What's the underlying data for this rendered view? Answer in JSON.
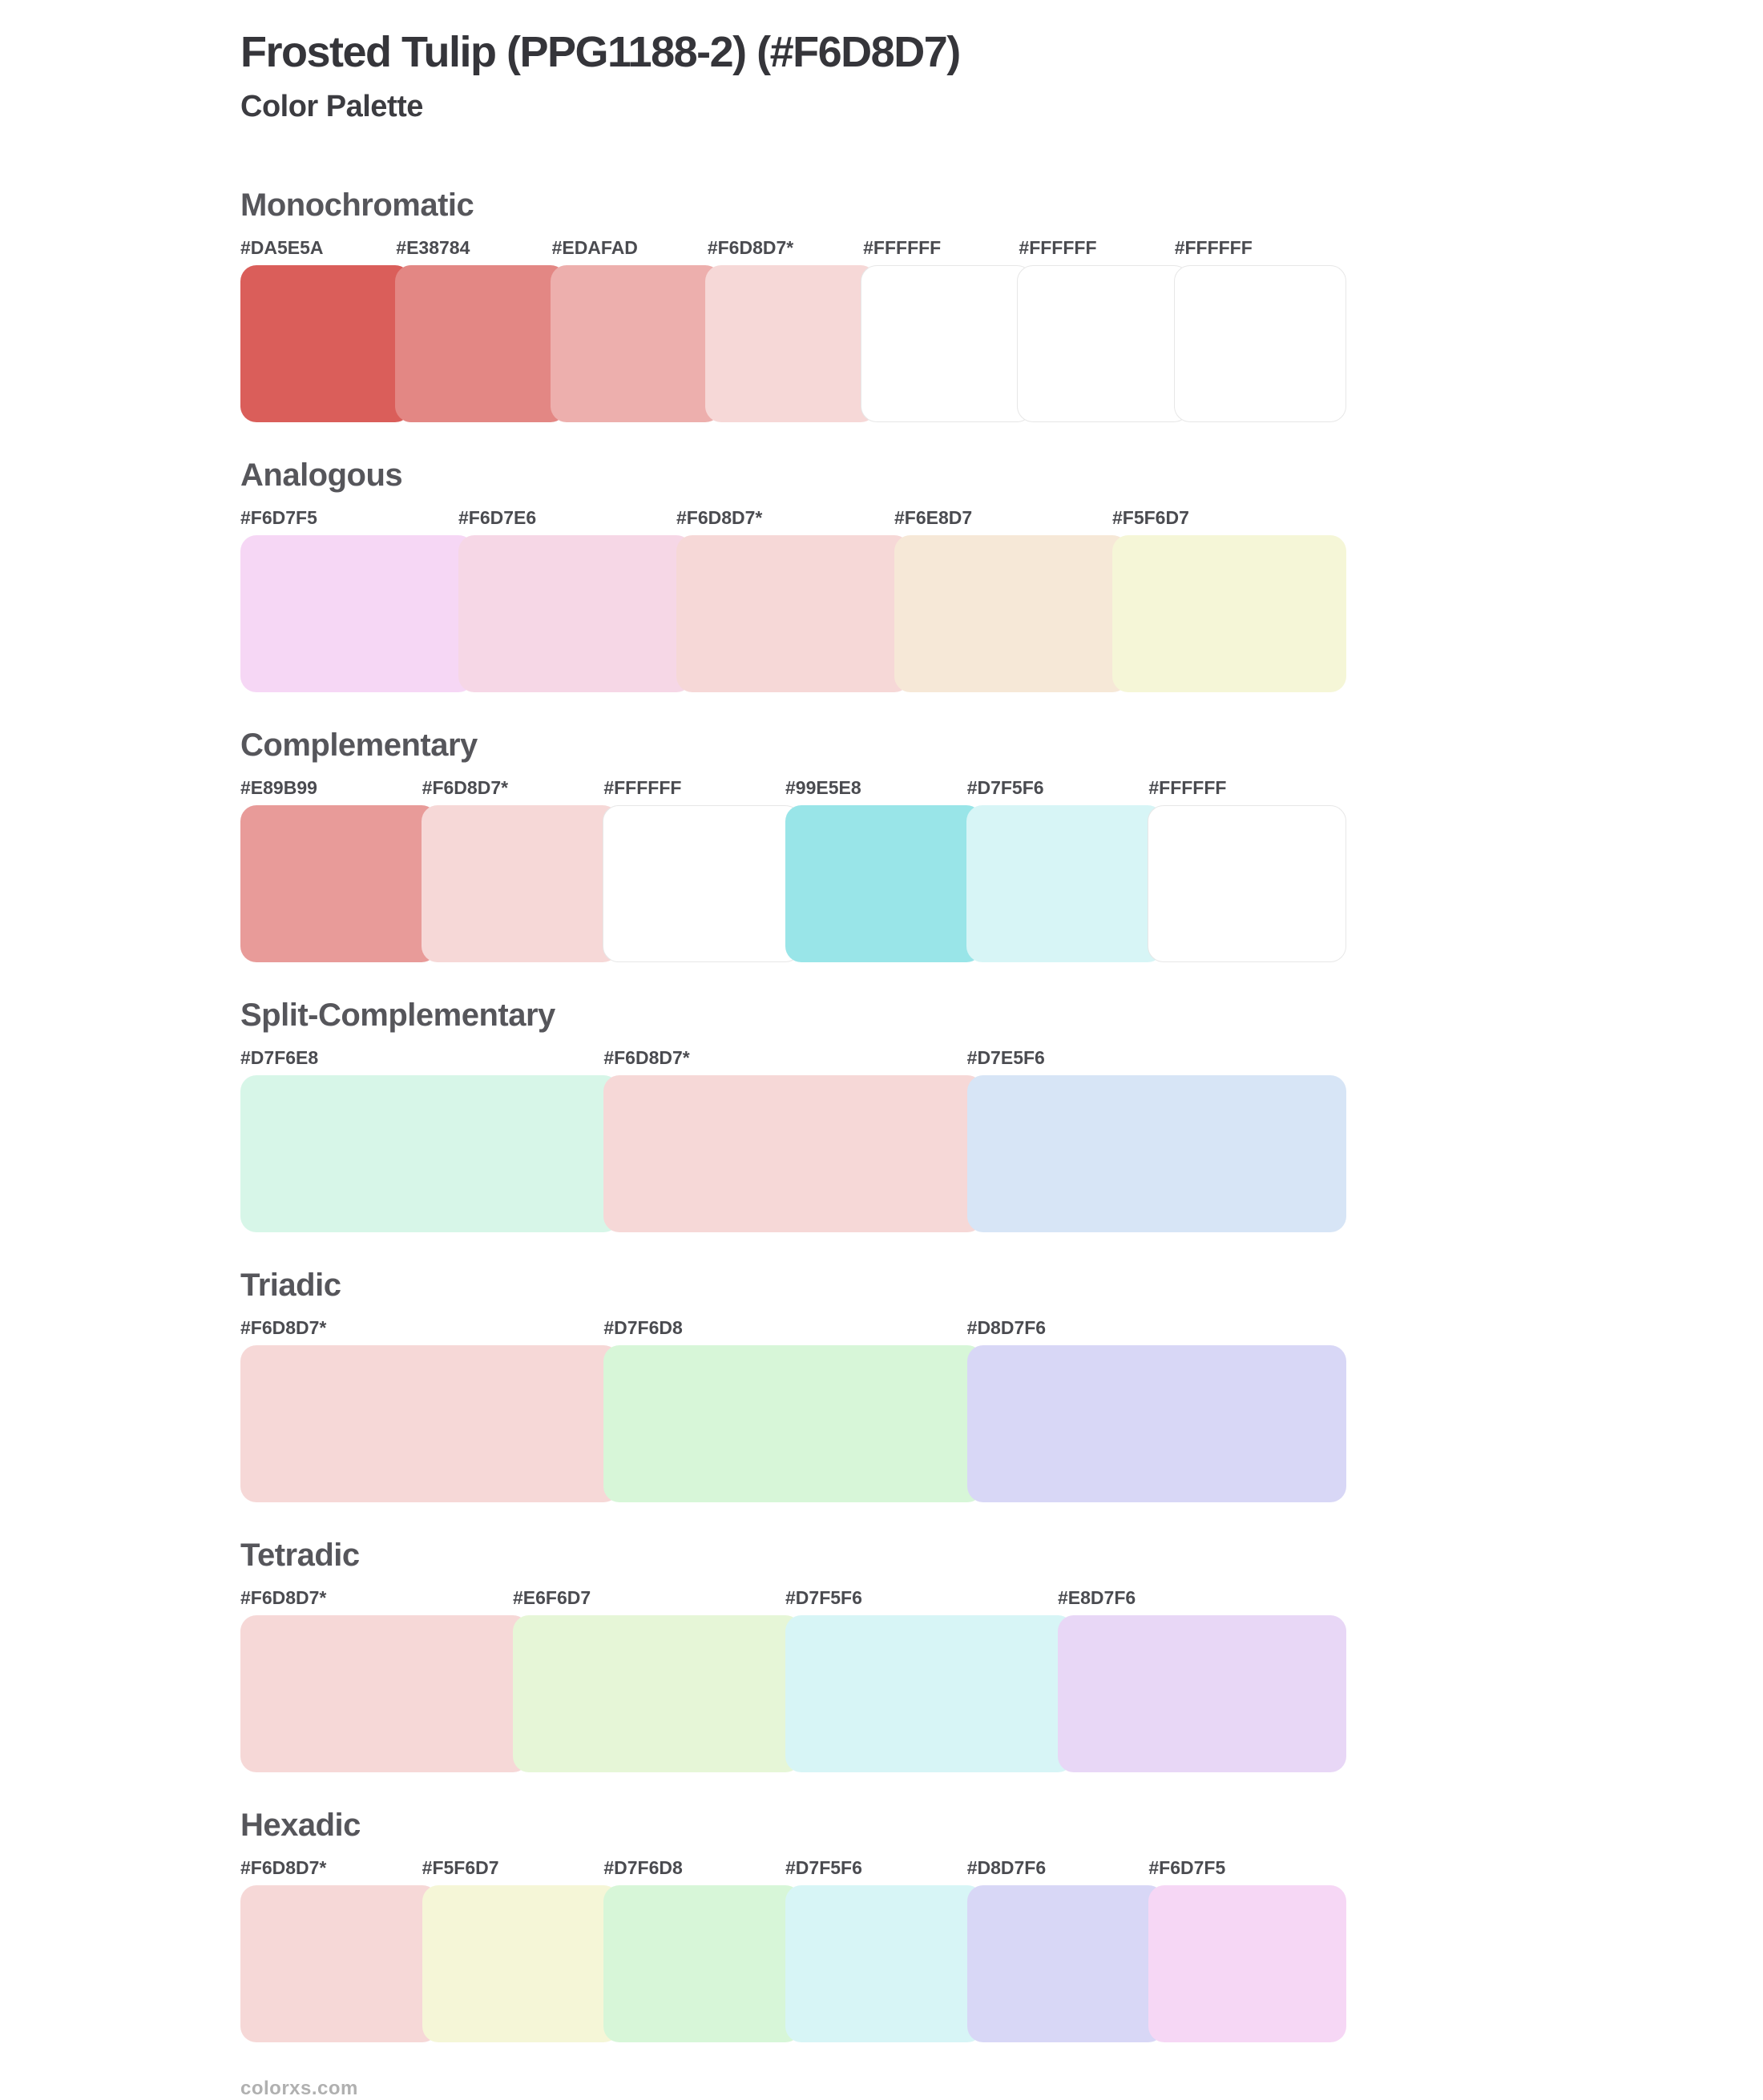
{
  "header": {
    "title": "Frosted Tulip (PPG1188-2) (#F6D8D7)",
    "subtitle": "Color Palette",
    "base_color": "#F6D8D7"
  },
  "sections": [
    {
      "name": "Monochromatic",
      "swatches": [
        {
          "label": "#DA5E5A",
          "color": "#DA5E5A"
        },
        {
          "label": "#E38784",
          "color": "#E38784"
        },
        {
          "label": "#EDAFAD",
          "color": "#EDAFAD"
        },
        {
          "label": "#F6D8D7*",
          "color": "#F6D8D7"
        },
        {
          "label": "#FFFFFF",
          "color": "#FFFFFF"
        },
        {
          "label": "#FFFFFF",
          "color": "#FFFFFF"
        },
        {
          "label": "#FFFFFF",
          "color": "#FFFFFF"
        }
      ]
    },
    {
      "name": "Analogous",
      "swatches": [
        {
          "label": "#F6D7F5",
          "color": "#F6D7F5"
        },
        {
          "label": "#F6D7E6",
          "color": "#F6D7E6"
        },
        {
          "label": "#F6D8D7*",
          "color": "#F6D8D7"
        },
        {
          "label": "#F6E8D7",
          "color": "#F6E8D7"
        },
        {
          "label": "#F5F6D7",
          "color": "#F5F6D7"
        }
      ]
    },
    {
      "name": "Complementary",
      "swatches": [
        {
          "label": "#E89B99",
          "color": "#E89B99"
        },
        {
          "label": "#F6D8D7*",
          "color": "#F6D8D7"
        },
        {
          "label": "#FFFFFF",
          "color": "#FFFFFF"
        },
        {
          "label": "#99E5E8",
          "color": "#99E5E8"
        },
        {
          "label": "#D7F5F6",
          "color": "#D7F5F6"
        },
        {
          "label": "#FFFFFF",
          "color": "#FFFFFF"
        }
      ]
    },
    {
      "name": "Split-Complementary",
      "swatches": [
        {
          "label": "#D7F6E8",
          "color": "#D7F6E8"
        },
        {
          "label": "#F6D8D7*",
          "color": "#F6D8D7"
        },
        {
          "label": "#D7E5F6",
          "color": "#D7E5F6"
        }
      ]
    },
    {
      "name": "Triadic",
      "swatches": [
        {
          "label": "#F6D8D7*",
          "color": "#F6D8D7"
        },
        {
          "label": "#D7F6D8",
          "color": "#D7F6D8"
        },
        {
          "label": "#D8D7F6",
          "color": "#D8D7F6"
        }
      ]
    },
    {
      "name": "Tetradic",
      "swatches": [
        {
          "label": "#F6D8D7*",
          "color": "#F6D8D7"
        },
        {
          "label": "#E6F6D7",
          "color": "#E6F6D7"
        },
        {
          "label": "#D7F5F6",
          "color": "#D7F5F6"
        },
        {
          "label": "#E8D7F6",
          "color": "#E8D7F6"
        }
      ]
    },
    {
      "name": "Hexadic",
      "swatches": [
        {
          "label": "#F6D8D7*",
          "color": "#F6D8D7"
        },
        {
          "label": "#F5F6D7",
          "color": "#F5F6D7"
        },
        {
          "label": "#D7F6D8",
          "color": "#D7F6D8"
        },
        {
          "label": "#D7F5F6",
          "color": "#D7F5F6"
        },
        {
          "label": "#D8D7F6",
          "color": "#D8D7F6"
        },
        {
          "label": "#F6D7F5",
          "color": "#F6D7F5"
        }
      ]
    }
  ],
  "footer": {
    "text": "colorxs.com"
  }
}
